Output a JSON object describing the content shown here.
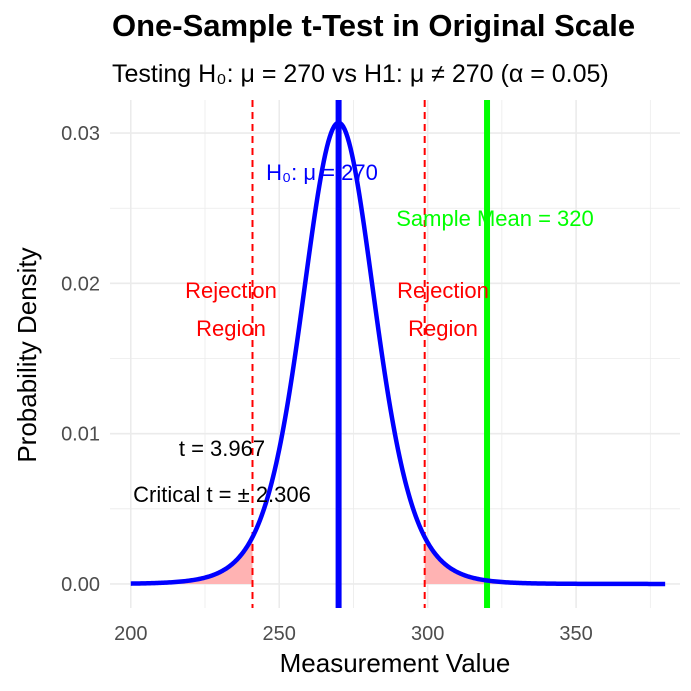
{
  "chart_data": {
    "type": "line",
    "title": "One-Sample t-Test in Original Scale",
    "subtitle": "Testing H₀: μ = 270 vs H1: μ ≠ 270 (α = 0.05)",
    "xlabel": "Measurement Value",
    "ylabel": "Probability Density",
    "xlim": [
      193,
      385
    ],
    "ylim": [
      -0.0016,
      0.0322
    ],
    "x_ticks": [
      200,
      250,
      300,
      350
    ],
    "y_ticks": [
      0.0,
      0.01,
      0.02,
      0.03
    ],
    "x_tick_labels": [
      "200",
      "250",
      "300",
      "350"
    ],
    "y_tick_labels": [
      "0.00",
      "0.01",
      "0.02",
      "0.03"
    ],
    "grid": true,
    "series": [
      {
        "type": "t-density",
        "df": 8,
        "center": 270,
        "scale": 12.6,
        "x_range": [
          200,
          380
        ],
        "color": "#0000ff"
      }
    ],
    "null_mean": 270,
    "sample_mean": 320,
    "critical_values": [
      241,
      299
    ],
    "colors": {
      "curve": "#0000ff",
      "null_line": "#0000ff",
      "sample_line": "#00ff00",
      "critical": "#ff0000",
      "rejection_fill": "#ffb3b3",
      "grid": "#ebebeb"
    },
    "annotations": {
      "null_label": "H₀: μ = 270",
      "sample_label": "Sample Mean = 320",
      "rejection_left_line1": "Rejection",
      "rejection_left_line2": "Region",
      "rejection_right_line1": "Rejection",
      "rejection_right_line2": "Region",
      "t_stat": "t = 3.967",
      "critical_t": "Critical t = ± 2.306"
    }
  }
}
